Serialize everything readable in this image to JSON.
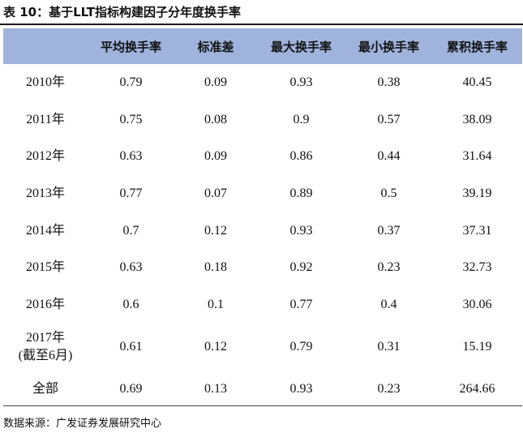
{
  "title": "表 10：基于LLT指标构建因子分年度换手率",
  "table": {
    "headers": [
      "",
      "平均换手率",
      "标准差",
      "最大换手率",
      "最小换手率",
      "累积换手率"
    ],
    "rows": [
      {
        "year": "2010年",
        "values": [
          "0.79",
          "0.09",
          "0.93",
          "0.38",
          "40.45"
        ]
      },
      {
        "year": "2011年",
        "values": [
          "0.75",
          "0.08",
          "0.9",
          "0.57",
          "38.09"
        ]
      },
      {
        "year": "2012年",
        "values": [
          "0.63",
          "0.09",
          "0.86",
          "0.44",
          "31.64"
        ]
      },
      {
        "year": "2013年",
        "values": [
          "0.77",
          "0.07",
          "0.89",
          "0.5",
          "39.19"
        ]
      },
      {
        "year": "2014年",
        "values": [
          "0.7",
          "0.12",
          "0.93",
          "0.37",
          "37.31"
        ]
      },
      {
        "year": "2015年",
        "values": [
          "0.63",
          "0.18",
          "0.92",
          "0.23",
          "32.73"
        ]
      },
      {
        "year": "2016年",
        "values": [
          "0.6",
          "0.1",
          "0.77",
          "0.4",
          "30.06"
        ]
      },
      {
        "year": "2017年",
        "year_note": "(截至6月)",
        "values": [
          "0.61",
          "0.12",
          "0.79",
          "0.31",
          "15.19"
        ]
      },
      {
        "year": "全部",
        "values": [
          "0.69",
          "0.13",
          "0.93",
          "0.23",
          "264.66"
        ]
      }
    ]
  },
  "source": "数据来源：广发证券发展研究中心",
  "colors": {
    "header_bg": "#9fb3dc",
    "text": "#111111"
  }
}
